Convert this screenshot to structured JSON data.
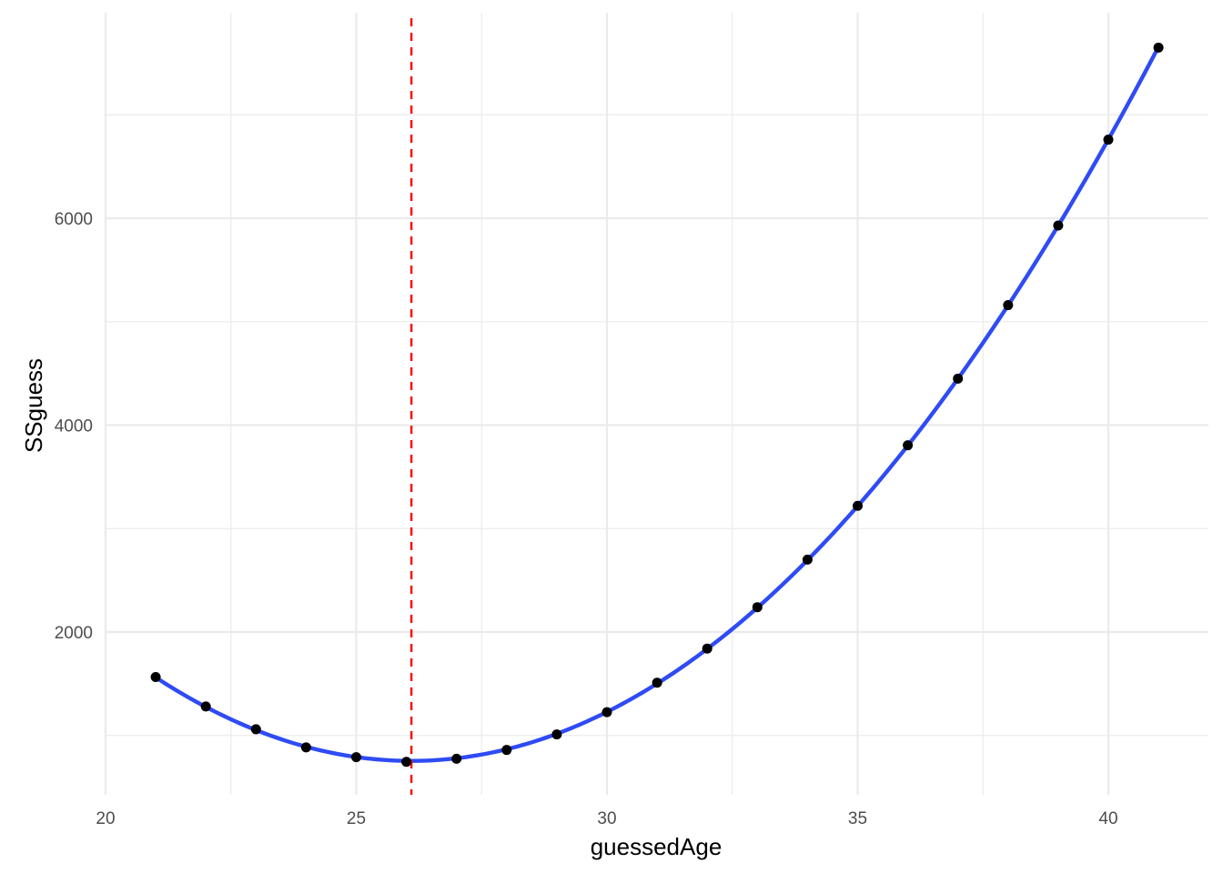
{
  "chart_data": {
    "type": "scatter",
    "title": "",
    "xlabel": "guessedAge",
    "ylabel": "SSguess",
    "xlim": [
      20,
      42
    ],
    "ylim": [
      500,
      7700
    ],
    "x_ticks": [
      20,
      25,
      30,
      35,
      40
    ],
    "y_ticks": [
      2000,
      4000,
      6000
    ],
    "x_tick_labels": [
      "20",
      "25",
      "30",
      "35",
      "40"
    ],
    "y_tick_labels": [
      "2000",
      "4000",
      "6000"
    ],
    "grid": true,
    "legend": "none",
    "points": {
      "x": [
        21,
        22,
        23,
        24,
        25,
        26,
        27,
        28,
        29,
        30,
        31,
        32,
        33,
        34,
        35,
        36,
        37,
        38,
        39,
        40,
        41
      ],
      "y": [
        1565,
        1280,
        1060,
        885,
        790,
        745,
        775,
        860,
        1010,
        1225,
        1510,
        1840,
        2240,
        2700,
        3220,
        3805,
        4450,
        5160,
        5930,
        6760,
        7650
      ]
    },
    "fit_line": {
      "type": "quadratic",
      "color": "#2e4bf5"
    },
    "vline": {
      "x": 26.1,
      "style": "dashed",
      "color": "#ff0000"
    },
    "colors": {
      "points": "#000000",
      "grid": "#ebebeb",
      "tick_text": "#4d4d4d"
    }
  }
}
